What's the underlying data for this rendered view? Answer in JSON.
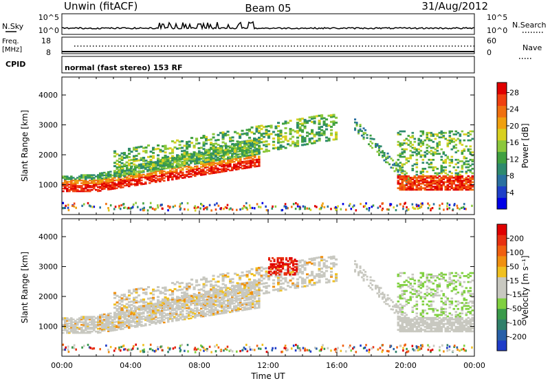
{
  "header": {
    "station": "Unwin (fitACF)",
    "beam": "Beam 05",
    "date": "31/Aug/2012"
  },
  "status_panels": {
    "nsky_label": "N.Sky",
    "nsky_ticks": [
      "10^5",
      "10^0"
    ],
    "nsearch_label": "N.Search",
    "nsearch_ticks": [
      "10^5",
      "10^0"
    ],
    "freq_label": "Freq.",
    "freq_unit": "[MHz]",
    "freq_ticks": [
      "18",
      "8"
    ],
    "nave_label": "Nave",
    "nave_ticks": [
      "60",
      "0"
    ],
    "cpid_label": "CPID",
    "cpid_value": "normal (fast stereo) 153 RF"
  },
  "chart_data": [
    {
      "type": "heatmap",
      "name": "power-panel",
      "ylabel": "Slant Range [km]",
      "ylim": [
        0,
        4600
      ],
      "yticks": [
        1000,
        2000,
        3000,
        4000
      ],
      "xlim": [
        0,
        24
      ],
      "colorbar": {
        "label": "Power [dB]",
        "ticks": [
          "4",
          "8",
          "12",
          "16",
          "20",
          "24",
          "28"
        ],
        "colors": [
          "#0000e6",
          "#1e3fc8",
          "#2a70a0",
          "#2e8a6e",
          "#40a040",
          "#8cc83c",
          "#d8d020",
          "#f0a010",
          "#f07010",
          "#f04010",
          "#e00000"
        ]
      }
    },
    {
      "type": "heatmap",
      "name": "velocity-panel",
      "ylabel": "Slant Range [km]",
      "ylim": [
        0,
        4600
      ],
      "yticks": [
        1000,
        2000,
        3000,
        4000
      ],
      "xlim": [
        0,
        24
      ],
      "xticks": [
        "00:00",
        "04:00",
        "08:00",
        "12:00",
        "16:00",
        "20:00",
        "00:00"
      ],
      "xlabel": "Time UT",
      "colorbar": {
        "label": "Velocity [m s⁻¹]",
        "ticks": [
          "200",
          "100",
          "50",
          "15",
          "-15",
          "-50",
          "-100",
          "-200"
        ],
        "colors": [
          "#1e3cc8",
          "#2860a8",
          "#30806a",
          "#3a9a4a",
          "#80d040",
          "#c8c8c0",
          "#c8c8c0",
          "#f0c020",
          "#f09010",
          "#f06010",
          "#e83010",
          "#e00000"
        ]
      }
    }
  ]
}
